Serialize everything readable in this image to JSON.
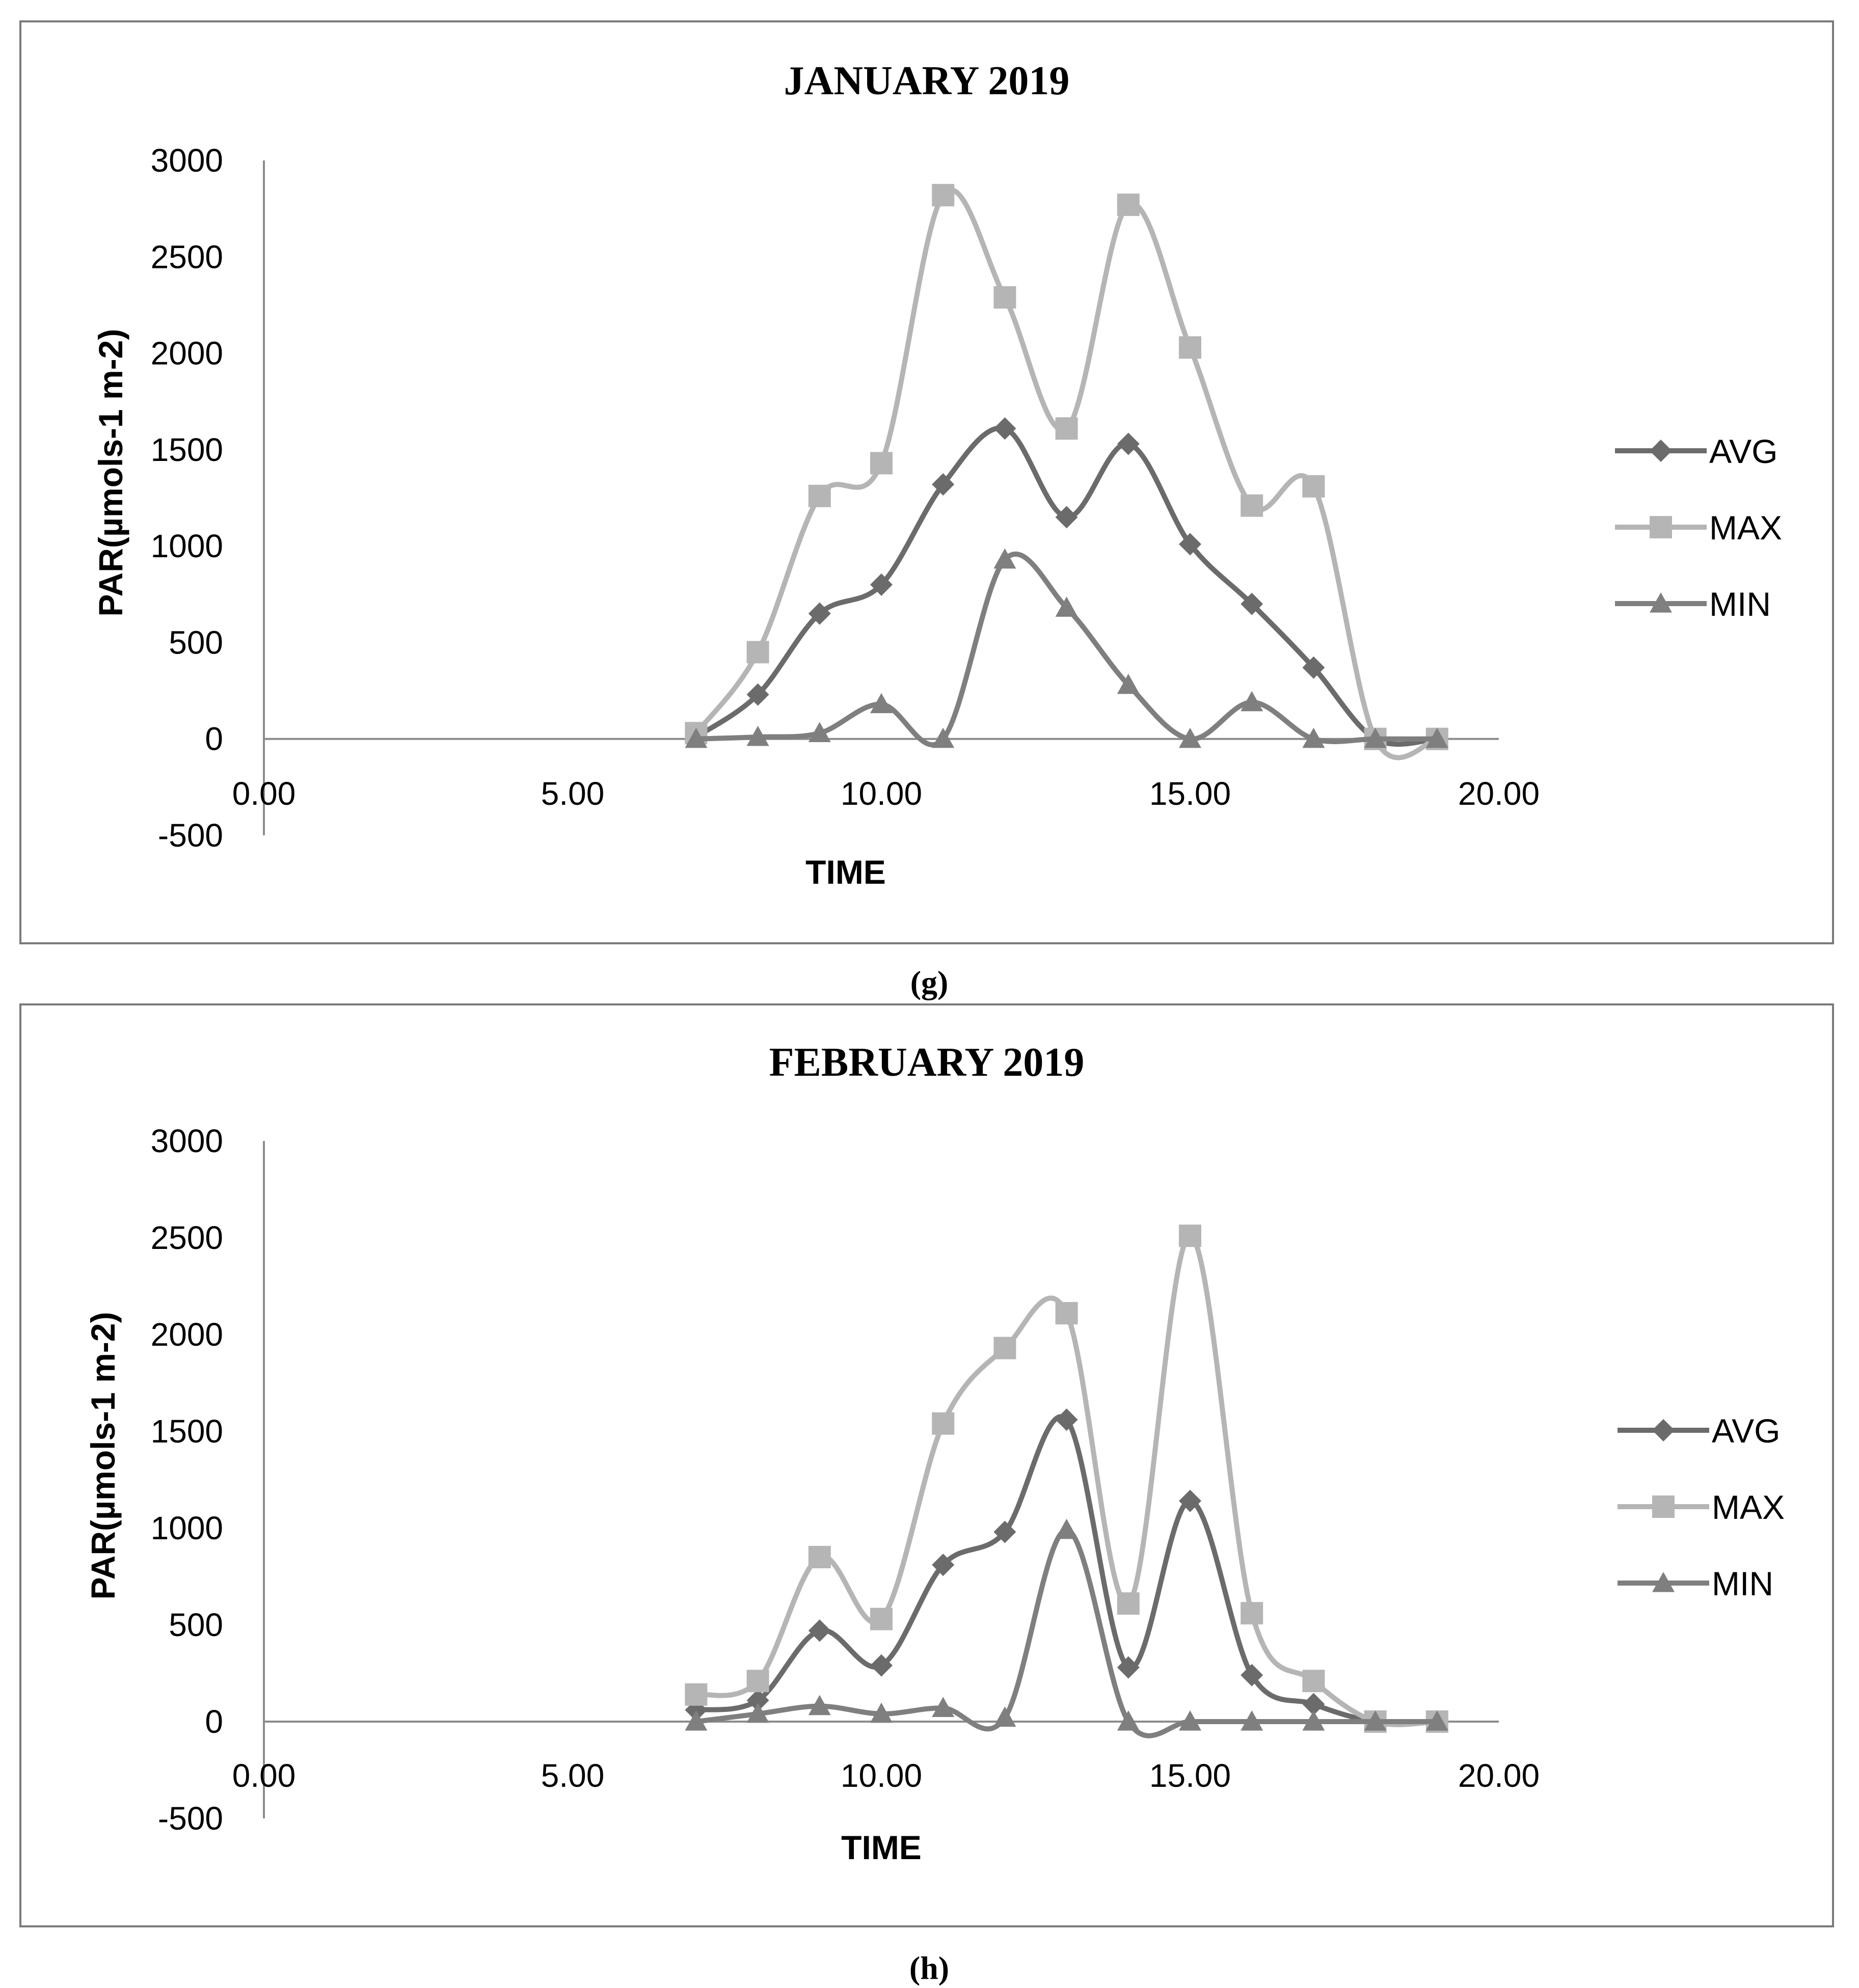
{
  "figure": {
    "colors": {
      "AVG": "#6b6b6b",
      "MAX": "#b5b5b5",
      "MIN": "#7f7f7f",
      "axis": "#8c8c8c",
      "frame": "#7a7a7a"
    }
  },
  "chart_data": [
    {
      "type": "line",
      "title": "JANUARY 2019",
      "caption": "(g)",
      "xlabel": "TIME",
      "ylabel": "PAR(µmols-1 m-2)",
      "xlim": [
        0,
        20
      ],
      "ylim": [
        -500,
        3000
      ],
      "x_ticks": [
        "0.00",
        "5.00",
        "10.00",
        "15.00",
        "20.00"
      ],
      "y_ticks": [
        "3000",
        "2500",
        "2000",
        "1500",
        "1000",
        "500",
        "0",
        "-500"
      ],
      "x": [
        7,
        8,
        9,
        10,
        11,
        12,
        13,
        14,
        15,
        16,
        17,
        18,
        19
      ],
      "series": [
        {
          "name": "AVG",
          "marker": "diamond",
          "values": [
            10,
            230,
            650,
            800,
            1320,
            1610,
            1150,
            1530,
            1010,
            700,
            370,
            0,
            0
          ]
        },
        {
          "name": "MAX",
          "marker": "square",
          "values": [
            30,
            450,
            1260,
            1430,
            2820,
            2290,
            1610,
            2770,
            2030,
            1210,
            1310,
            0,
            0
          ]
        },
        {
          "name": "MIN",
          "marker": "triangle",
          "values": [
            0,
            10,
            30,
            180,
            0,
            930,
            680,
            280,
            0,
            190,
            0,
            0,
            0
          ]
        }
      ],
      "legend": [
        "AVG",
        "MAX",
        "MIN"
      ]
    },
    {
      "type": "line",
      "title": "FEBRUARY 2019",
      "caption": "(h)",
      "xlabel": "TIME",
      "ylabel": "PAR(µmols-1 m-2)",
      "xlim": [
        0,
        20
      ],
      "ylim": [
        -500,
        3000
      ],
      "x_ticks": [
        "0.00",
        "5.00",
        "10.00",
        "15.00",
        "20.00"
      ],
      "y_ticks": [
        "3000",
        "2500",
        "2000",
        "1500",
        "1000",
        "500",
        "0",
        "-500"
      ],
      "x": [
        7,
        8,
        9,
        10,
        11,
        12,
        13,
        14,
        15,
        16,
        17,
        18,
        19
      ],
      "series": [
        {
          "name": "AVG",
          "marker": "diamond",
          "values": [
            60,
            110,
            470,
            290,
            810,
            980,
            1560,
            280,
            1140,
            240,
            90,
            0,
            0
          ]
        },
        {
          "name": "MAX",
          "marker": "square",
          "values": [
            140,
            210,
            850,
            530,
            1540,
            1930,
            2110,
            610,
            2510,
            560,
            210,
            0,
            0
          ]
        },
        {
          "name": "MIN",
          "marker": "triangle",
          "values": [
            0,
            40,
            80,
            40,
            70,
            20,
            990,
            0,
            0,
            0,
            0,
            0,
            0
          ]
        }
      ],
      "legend": [
        "AVG",
        "MAX",
        "MIN"
      ]
    }
  ]
}
